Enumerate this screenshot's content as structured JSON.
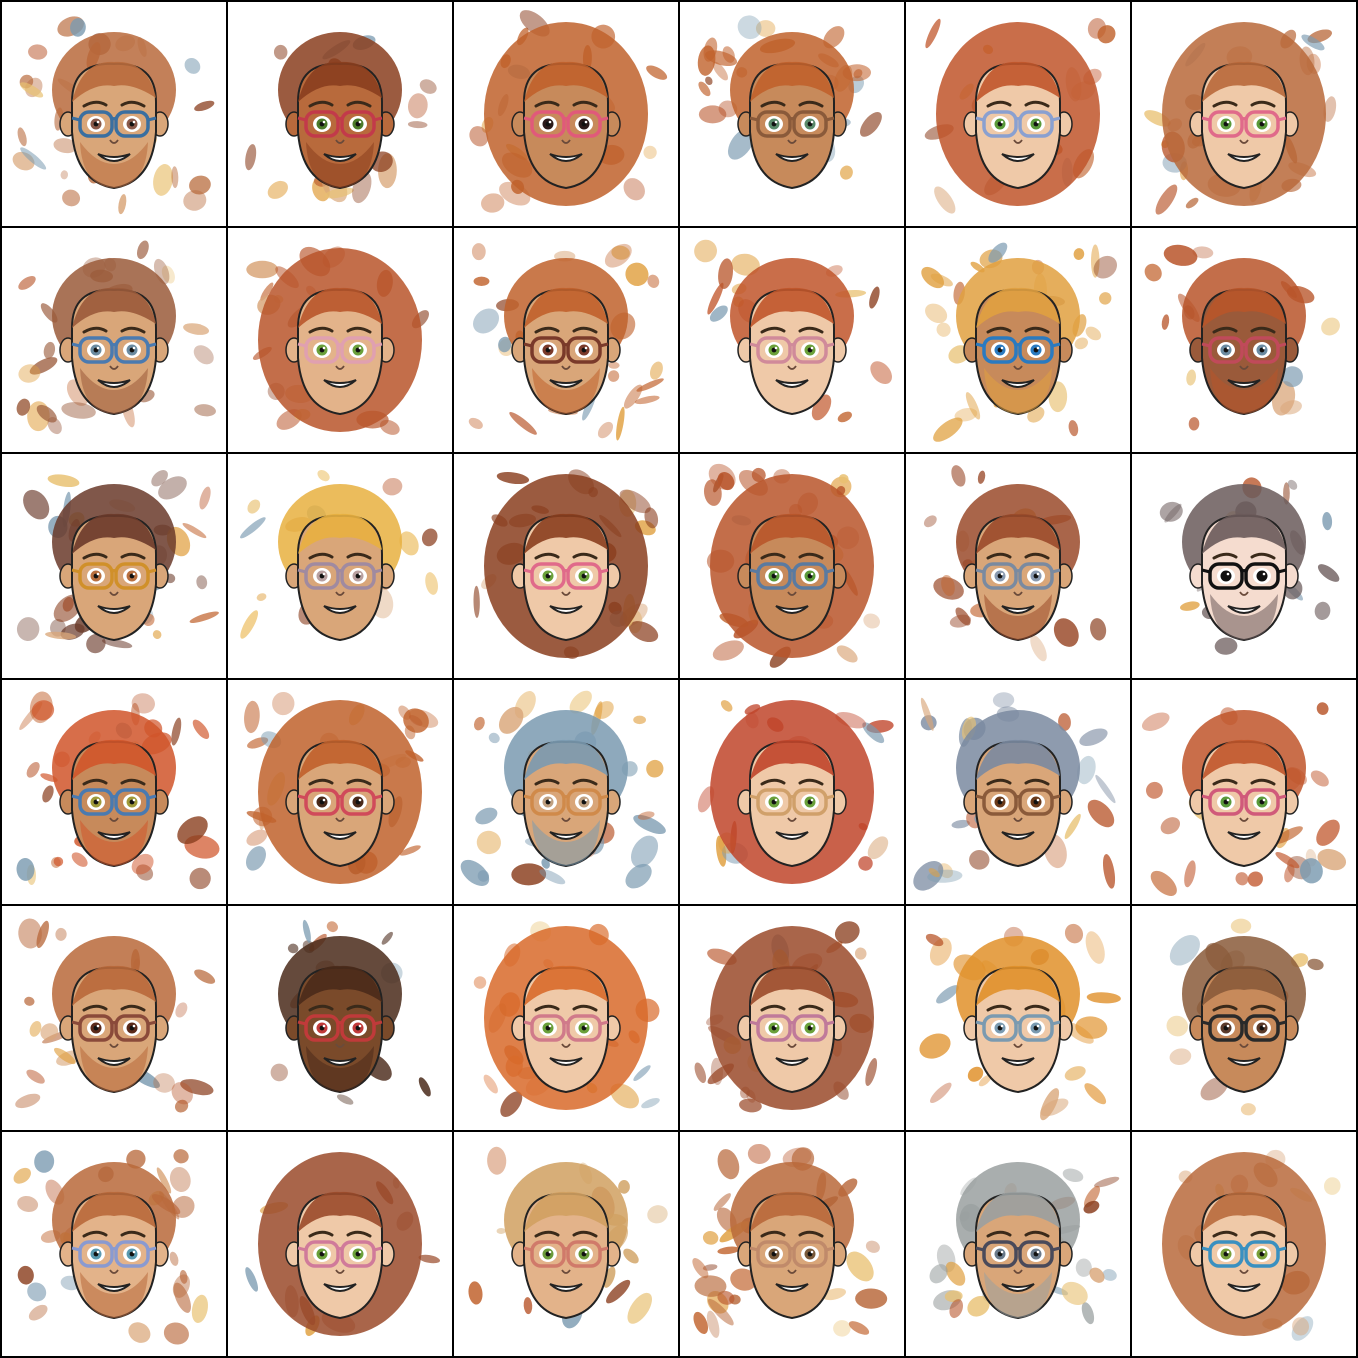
{
  "grid": {
    "rows": 6,
    "cols": 6,
    "border_color": "#000000",
    "background_color": "#ffffff"
  },
  "avatars": [
    {
      "skin": "#d9a679",
      "hair": "#b86a3c",
      "glasses": "#3a6fa0",
      "lens": "#8a5a4a",
      "style": "man",
      "beard": true,
      "noise": 0.8
    },
    {
      "skin": "#b86a3c",
      "hair": "#8a3e1e",
      "glasses": "#c23a4a",
      "lens": "#4b7a2a",
      "style": "man",
      "beard": true,
      "noise": 0.5
    },
    {
      "skin": "#c78a5b",
      "hair": "#c0612b",
      "glasses": "#e05a7a",
      "lens": "#2b1a1a",
      "style": "woman",
      "beard": false,
      "noise": 0.6
    },
    {
      "skin": "#c78a5b",
      "hair": "#c0612b",
      "glasses": "#8a5a3a",
      "lens": "#5a8a6a",
      "style": "man",
      "beard": false,
      "noise": 0.7
    },
    {
      "skin": "#efc9a8",
      "hair": "#c0552a",
      "glasses": "#8aa0d0",
      "lens": "#5a9a3a",
      "style": "woman",
      "beard": false,
      "noise": 0.5
    },
    {
      "skin": "#efc9a8",
      "hair": "#b8683a",
      "glasses": "#e06a8a",
      "lens": "#5a9a3a",
      "style": "woman",
      "beard": false,
      "noise": 0.7
    },
    {
      "skin": "#d9a679",
      "hair": "#9a5a3a",
      "glasses": "#4a7ab0",
      "lens": "#6a8aa0",
      "style": "man",
      "beard": true,
      "noise": 0.7
    },
    {
      "skin": "#e3b38a",
      "hair": "#b8552a",
      "glasses": "#e0a0b0",
      "lens": "#6aa03a",
      "style": "woman",
      "beard": false,
      "noise": 0.5
    },
    {
      "skin": "#d9a679",
      "hair": "#c0612b",
      "glasses": "#7a3a2a",
      "lens": "#7a3a2a",
      "style": "man",
      "beard": true,
      "noise": 0.8
    },
    {
      "skin": "#efc9a8",
      "hair": "#c0552a",
      "glasses": "#d08a9a",
      "lens": "#6aa03a",
      "style": "man",
      "beard": false,
      "noise": 0.4
    },
    {
      "skin": "#c78a5b",
      "hair": "#e0a040",
      "glasses": "#2a7ac0",
      "lens": "#2a7ac0",
      "style": "man",
      "beard": true,
      "noise": 0.8
    },
    {
      "skin": "#9a5a3a",
      "hair": "#b8552a",
      "glasses": "#c04a5a",
      "lens": "#6a8aa0",
      "style": "man",
      "beard": true,
      "noise": 0.5
    },
    {
      "skin": "#d9a679",
      "hair": "#6a3a2a",
      "glasses": "#d0902a",
      "lens": "#b87040",
      "style": "man",
      "beard": false,
      "noise": 0.9
    },
    {
      "skin": "#d9a679",
      "hair": "#e8b040",
      "glasses": "#a08aa0",
      "lens": "#b8a0a0",
      "style": "man",
      "beard": false,
      "noise": 0.4
    },
    {
      "skin": "#efc9a8",
      "hair": "#8a3e1e",
      "glasses": "#e06a8a",
      "lens": "#6aa03a",
      "style": "woman",
      "beard": false,
      "noise": 0.6
    },
    {
      "skin": "#c78a5b",
      "hair": "#b8552a",
      "glasses": "#5a7aa0",
      "lens": "#5a9a3a",
      "style": "woman",
      "beard": false,
      "noise": 0.7
    },
    {
      "skin": "#d9a679",
      "hair": "#9a4a2a",
      "glasses": "#7a8aa0",
      "lens": "#8a9ab0",
      "style": "man",
      "beard": true,
      "noise": 0.6
    },
    {
      "skin": "#f5dccf",
      "hair": "#6a5a5a",
      "glasses": "#111111",
      "lens": "#111111",
      "style": "man",
      "beard": true,
      "noise": 0.5
    },
    {
      "skin": "#c78a5b",
      "hair": "#d0552a",
      "glasses": "#4a7ab0",
      "lens": "#a09a3a",
      "style": "man",
      "beard": true,
      "noise": 0.8
    },
    {
      "skin": "#d9a679",
      "hair": "#c0612b",
      "glasses": "#d04a5a",
      "lens": "#4a2a1a",
      "style": "woman",
      "beard": false,
      "noise": 0.8
    },
    {
      "skin": "#d9a679",
      "hair": "#7a9ab0",
      "glasses": "#d08a4a",
      "lens": "#c0a080",
      "style": "man",
      "beard": true,
      "noise": 0.9
    },
    {
      "skin": "#efc9a8",
      "hair": "#c0452a",
      "glasses": "#d0a06a",
      "lens": "#6aa03a",
      "style": "woman",
      "beard": false,
      "noise": 0.5
    },
    {
      "skin": "#d9a679",
      "hair": "#7a8aa0",
      "glasses": "#8a5a3a",
      "lens": "#6a3a1a",
      "style": "man",
      "beard": false,
      "noise": 0.7
    },
    {
      "skin": "#efc9a8",
      "hair": "#c0552a",
      "glasses": "#d05a7a",
      "lens": "#5a9a3a",
      "style": "man",
      "beard": false,
      "noise": 0.7
    },
    {
      "skin": "#d9a679",
      "hair": "#b8683a",
      "glasses": "#8a4a3a",
      "lens": "#5a2a1a",
      "style": "man",
      "beard": true,
      "noise": 0.6
    },
    {
      "skin": "#7a4a2a",
      "hair": "#4a2a1a",
      "glasses": "#c03a3a",
      "lens": "#c03a3a",
      "style": "man",
      "beard": true,
      "noise": 0.4
    },
    {
      "skin": "#efc9a8",
      "hair": "#d86a2a",
      "glasses": "#d07a8a",
      "lens": "#6aa03a",
      "style": "woman",
      "beard": false,
      "noise": 0.6
    },
    {
      "skin": "#efc9a8",
      "hair": "#9a4a2a",
      "glasses": "#c07a9a",
      "lens": "#6aa03a",
      "style": "woman",
      "beard": false,
      "noise": 0.7
    },
    {
      "skin": "#efc9a8",
      "hair": "#e0902a",
      "glasses": "#7a9ab0",
      "lens": "#7a9ab0",
      "style": "man",
      "beard": false,
      "noise": 0.6
    },
    {
      "skin": "#c78a5b",
      "hair": "#8a5a3a",
      "glasses": "#2a2a2a",
      "lens": "#5a3a2a",
      "style": "man",
      "beard": false,
      "noise": 0.4
    },
    {
      "skin": "#e3b38a",
      "hair": "#b8683a",
      "glasses": "#8a9ad0",
      "lens": "#5a9ab0",
      "style": "man",
      "beard": true,
      "noise": 0.8
    },
    {
      "skin": "#efc9a8",
      "hair": "#9a4a2a",
      "glasses": "#d07a9a",
      "lens": "#6aa03a",
      "style": "woman",
      "beard": false,
      "noise": 0.4
    },
    {
      "skin": "#e3b38a",
      "hair": "#d0a060",
      "glasses": "#d07a6a",
      "lens": "#6a9a3a",
      "style": "man",
      "beard": false,
      "noise": 0.5
    },
    {
      "skin": "#d9a679",
      "hair": "#b8683a",
      "glasses": "#c08a6a",
      "lens": "#7a5a3a",
      "style": "man",
      "beard": false,
      "noise": 0.8
    },
    {
      "skin": "#d9a679",
      "hair": "#9aa0a0",
      "glasses": "#4a4a5a",
      "lens": "#6a7a8a",
      "style": "man",
      "beard": true,
      "noise": 0.8
    },
    {
      "skin": "#efc9a8",
      "hair": "#b86a3c",
      "glasses": "#3a90c0",
      "lens": "#7aa03a",
      "style": "woman",
      "beard": false,
      "noise": 0.6
    }
  ]
}
